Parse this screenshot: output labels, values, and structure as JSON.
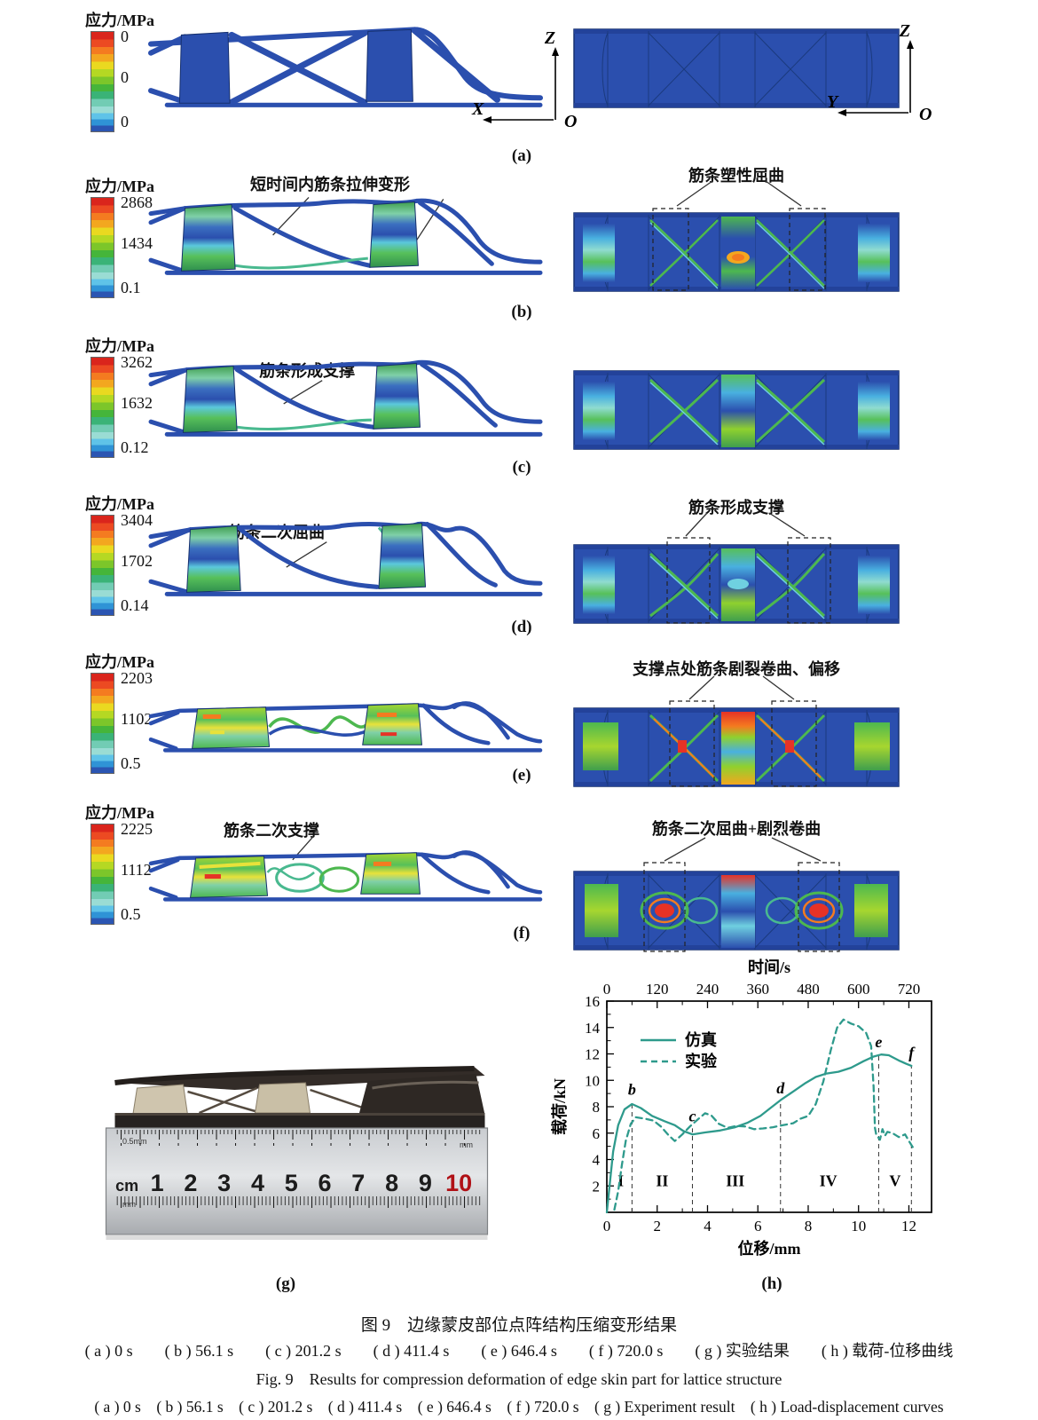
{
  "colorbar_title": "应力/MPa",
  "rows": [
    {
      "label": "(a)",
      "scale_max": "0",
      "scale_mid": "0",
      "scale_min": "0",
      "annotation_left": "",
      "annotation_right": ""
    },
    {
      "label": "(b)",
      "scale_max": "2868",
      "scale_mid": "1434",
      "scale_min": "0.1",
      "annotation_left": "短时间内筋条拉伸变形",
      "annotation_right": "筋条塑性屈曲"
    },
    {
      "label": "(c)",
      "scale_max": "3262",
      "scale_mid": "1632",
      "scale_min": "0.12",
      "annotation_left": "筋条形成支撑",
      "annotation_right": ""
    },
    {
      "label": "(d)",
      "scale_max": "3404",
      "scale_mid": "1702",
      "scale_min": "0.14",
      "annotation_left": "筋条二次屈曲",
      "annotation_right": "筋条形成支撑"
    },
    {
      "label": "(e)",
      "scale_max": "2203",
      "scale_mid": "1102",
      "scale_min": "0.5",
      "annotation_left": "",
      "annotation_right": "支撑点处筋条剧裂卷曲、偏移"
    },
    {
      "label": "(f)",
      "scale_max": "2225",
      "scale_mid": "1112",
      "scale_min": "0.5",
      "annotation_left": "筋条二次支撑",
      "annotation_right": "筋条二次屈曲+剧烈卷曲"
    }
  ],
  "axes": {
    "left": {
      "up": "Z",
      "side": "X",
      "origin": "O"
    },
    "right": {
      "up": "Z",
      "side": "Y",
      "origin": "O"
    }
  },
  "photo": {
    "label": "(g)",
    "ruler_unit": "cm",
    "ruler_numbers": [
      "1",
      "2",
      "3",
      "4",
      "5",
      "6",
      "7",
      "8",
      "9",
      "10"
    ],
    "ruler_marks": {
      "top_left": "0.5mm",
      "top_right": "mm",
      "bottom_left": "mm"
    }
  },
  "chart_label": "(h)",
  "chart_data": {
    "type": "line",
    "title": "",
    "top_axis": {
      "label": "时间/s",
      "ticks": [
        0,
        120,
        240,
        360,
        480,
        600,
        720
      ],
      "minor_step": 60,
      "range": [
        0,
        774
      ]
    },
    "x_axis": {
      "label": "位移/mm",
      "ticks": [
        0,
        2,
        4,
        6,
        8,
        10,
        12
      ],
      "minor_step": 1,
      "range": [
        0,
        12.9
      ]
    },
    "y_axis": {
      "label": "载荷/kN",
      "ticks": [
        2,
        4,
        6,
        8,
        10,
        12,
        14,
        16
      ],
      "minor_step": 1,
      "range": [
        0,
        16
      ]
    },
    "grid": false,
    "legend_position": "top-left",
    "line_color": "#2e9a8c",
    "legend": [
      {
        "name": "仿真",
        "style": "solid"
      },
      {
        "name": "实验",
        "style": "dashed"
      }
    ],
    "series": [
      {
        "name": "仿真",
        "style": "solid",
        "points": [
          [
            0,
            0
          ],
          [
            0.12,
            2.2
          ],
          [
            0.25,
            4.6
          ],
          [
            0.45,
            6.6
          ],
          [
            0.7,
            7.8
          ],
          [
            1.0,
            8.2
          ],
          [
            1.35,
            7.9
          ],
          [
            1.8,
            7.3
          ],
          [
            2.3,
            6.9
          ],
          [
            2.7,
            6.6
          ],
          [
            3.05,
            6.15
          ],
          [
            3.4,
            5.9
          ],
          [
            3.9,
            6.05
          ],
          [
            4.5,
            6.2
          ],
          [
            5.1,
            6.45
          ],
          [
            5.6,
            6.8
          ],
          [
            6.1,
            7.3
          ],
          [
            6.5,
            7.9
          ],
          [
            6.9,
            8.5
          ],
          [
            7.4,
            9.15
          ],
          [
            7.9,
            9.8
          ],
          [
            8.3,
            10.25
          ],
          [
            8.7,
            10.5
          ],
          [
            9.2,
            10.65
          ],
          [
            9.7,
            10.95
          ],
          [
            10.2,
            11.45
          ],
          [
            10.6,
            11.8
          ],
          [
            10.9,
            11.95
          ],
          [
            11.2,
            11.9
          ],
          [
            11.6,
            11.5
          ],
          [
            11.9,
            11.25
          ],
          [
            12.1,
            11.1
          ]
        ]
      },
      {
        "name": "实验",
        "style": "dashed",
        "points": [
          [
            0.3,
            0.2
          ],
          [
            0.45,
            1.6
          ],
          [
            0.6,
            3.6
          ],
          [
            0.75,
            5.4
          ],
          [
            0.95,
            6.7
          ],
          [
            1.15,
            7.2
          ],
          [
            1.5,
            7.1
          ],
          [
            1.85,
            6.95
          ],
          [
            2.15,
            6.5
          ],
          [
            2.45,
            5.85
          ],
          [
            2.7,
            5.4
          ],
          [
            3.0,
            5.9
          ],
          [
            3.3,
            6.5
          ],
          [
            3.65,
            7.1
          ],
          [
            3.9,
            7.5
          ],
          [
            4.15,
            7.35
          ],
          [
            4.45,
            6.7
          ],
          [
            4.8,
            6.4
          ],
          [
            5.15,
            6.55
          ],
          [
            5.5,
            6.5
          ],
          [
            5.85,
            6.3
          ],
          [
            6.2,
            6.35
          ],
          [
            6.6,
            6.45
          ],
          [
            7.0,
            6.6
          ],
          [
            7.4,
            6.75
          ],
          [
            7.7,
            7.1
          ],
          [
            8.0,
            7.3
          ],
          [
            8.3,
            8.2
          ],
          [
            8.6,
            9.9
          ],
          [
            8.9,
            12.3
          ],
          [
            9.15,
            14.0
          ],
          [
            9.4,
            14.6
          ],
          [
            9.7,
            14.3
          ],
          [
            10.0,
            14.1
          ],
          [
            10.3,
            13.6
          ],
          [
            10.5,
            12.6
          ],
          [
            10.6,
            9.5
          ],
          [
            10.65,
            6.4
          ],
          [
            10.7,
            5.9
          ],
          [
            10.85,
            5.5
          ],
          [
            10.95,
            6.3
          ],
          [
            11.05,
            5.8
          ],
          [
            11.15,
            6.1
          ],
          [
            11.35,
            6.0
          ],
          [
            11.6,
            5.7
          ],
          [
            11.85,
            5.9
          ],
          [
            12.0,
            5.4
          ],
          [
            12.2,
            4.8
          ]
        ]
      }
    ],
    "point_labels": [
      {
        "label": "b",
        "x": 1.0,
        "y": 8.9
      },
      {
        "label": "c",
        "x": 3.4,
        "y": 6.9
      },
      {
        "label": "d",
        "x": 6.9,
        "y": 9.0
      },
      {
        "label": "e",
        "x": 10.8,
        "y": 12.5
      },
      {
        "label": "f",
        "x": 12.1,
        "y": 11.7
      }
    ],
    "zones": [
      {
        "label": "I",
        "x": 0.55
      },
      {
        "label": "II",
        "x": 2.2
      },
      {
        "label": "III",
        "x": 5.1
      },
      {
        "label": "IV",
        "x": 8.8
      },
      {
        "label": "V",
        "x": 11.45
      }
    ]
  },
  "captions": {
    "zh_title": "图 9　边缘蒙皮部位点阵结构压缩变形结果",
    "zh_items": "( a ) 0 s　　( b ) 56.1 s　　( c ) 201.2 s　　( d ) 411.4 s　　( e ) 646.4 s　　( f ) 720.0 s　　( g ) 实验结果　　( h ) 载荷-位移曲线",
    "en_title": "Fig. 9　Results for compression deformation of edge skin part for lattice structure",
    "en_items": "( a ) 0 s　( b ) 56.1 s　( c ) 201.2 s　( d ) 411.4 s　( e ) 646.4 s　( f ) 720.0 s　( g ) Experiment result　( h ) Load-displacement curves"
  }
}
